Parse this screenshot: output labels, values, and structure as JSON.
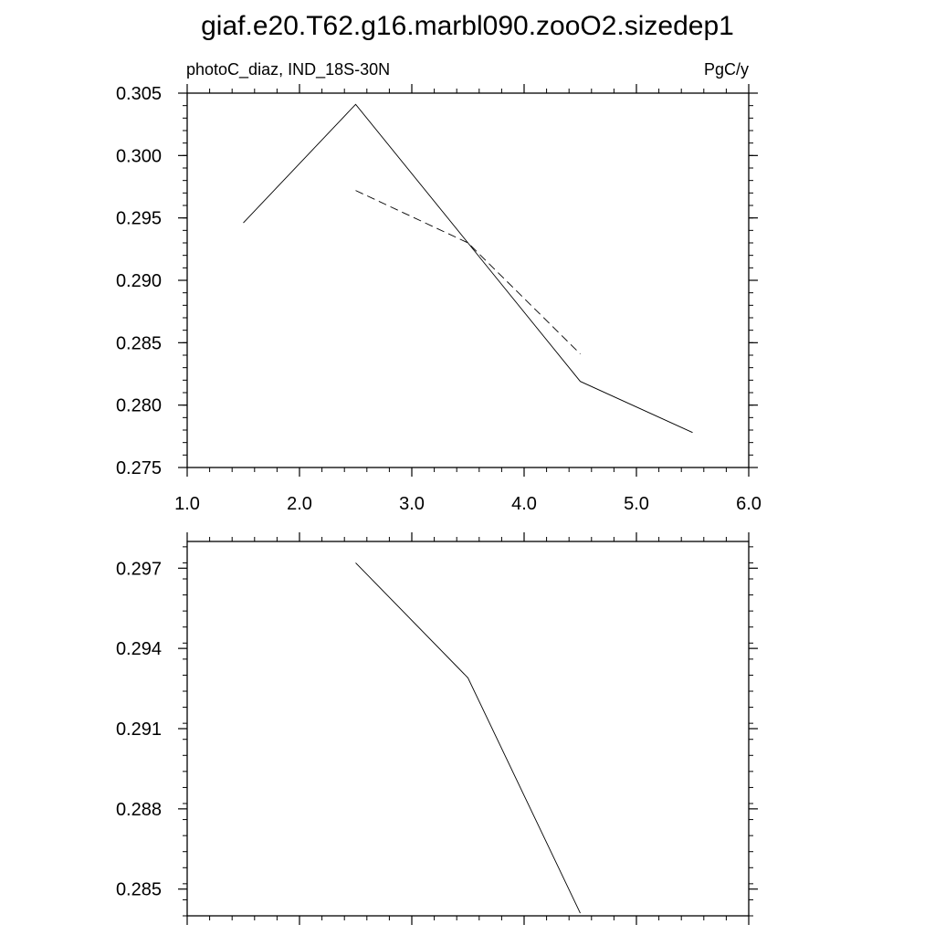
{
  "title": "giaf.e20.T62.g16.marbl090.zooO2.sizedep1",
  "chart_data": [
    {
      "type": "line",
      "left_label": "photoC_diaz, IND_18S-30N",
      "right_label": "PgC/y",
      "xlim": [
        1.0,
        6.0
      ],
      "ylim": [
        0.275,
        0.305
      ],
      "x_ticks": [
        "1.0",
        "2.0",
        "3.0",
        "4.0",
        "5.0",
        "6.0"
      ],
      "y_ticks": [
        "0.275",
        "0.280",
        "0.285",
        "0.290",
        "0.295",
        "0.300",
        "0.305"
      ],
      "grid": false,
      "series": [
        {
          "style": "solid",
          "x": [
            1.5,
            2.5,
            3.5,
            4.5,
            5.5
          ],
          "y": [
            0.2946,
            0.3041,
            0.293,
            0.2819,
            0.2778
          ]
        },
        {
          "style": "dashed",
          "x": [
            2.5,
            3.5,
            4.5
          ],
          "y": [
            0.2972,
            0.293,
            0.2841
          ]
        }
      ]
    },
    {
      "type": "line",
      "xlim": [
        1.0,
        6.0
      ],
      "ylim": [
        0.284,
        0.298
      ],
      "x_ticks": [],
      "y_ticks": [
        "0.285",
        "0.288",
        "0.291",
        "0.294",
        "0.297"
      ],
      "grid": false,
      "series": [
        {
          "style": "solid",
          "x": [
            2.5,
            3.5,
            4.5
          ],
          "y": [
            0.2972,
            0.2929,
            0.2841
          ]
        }
      ]
    }
  ]
}
